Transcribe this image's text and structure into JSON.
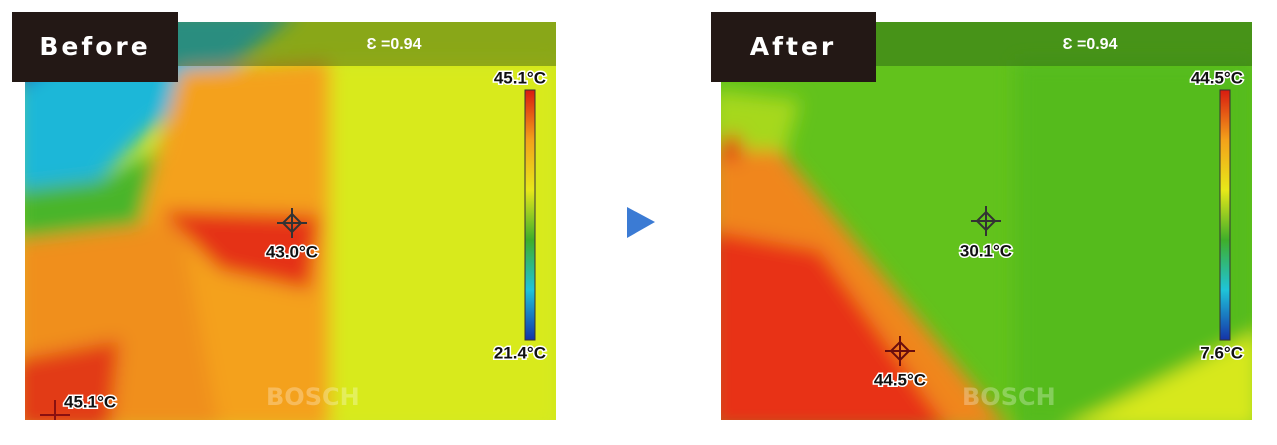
{
  "panels": [
    {
      "label": "Before",
      "emissivity": "Ɛ =0.94",
      "scale_max": "45.1°C",
      "scale_min": "21.4°C",
      "spots": [
        "43.0°C",
        "45.1°C"
      ],
      "watermark": "BOSCH"
    },
    {
      "label": "After",
      "emissivity": "Ɛ =0.94",
      "scale_max": "44.5°C",
      "scale_min": "7.6°C",
      "spots": [
        "30.1°C",
        "44.5°C"
      ],
      "watermark": "BOSCH"
    }
  ]
}
